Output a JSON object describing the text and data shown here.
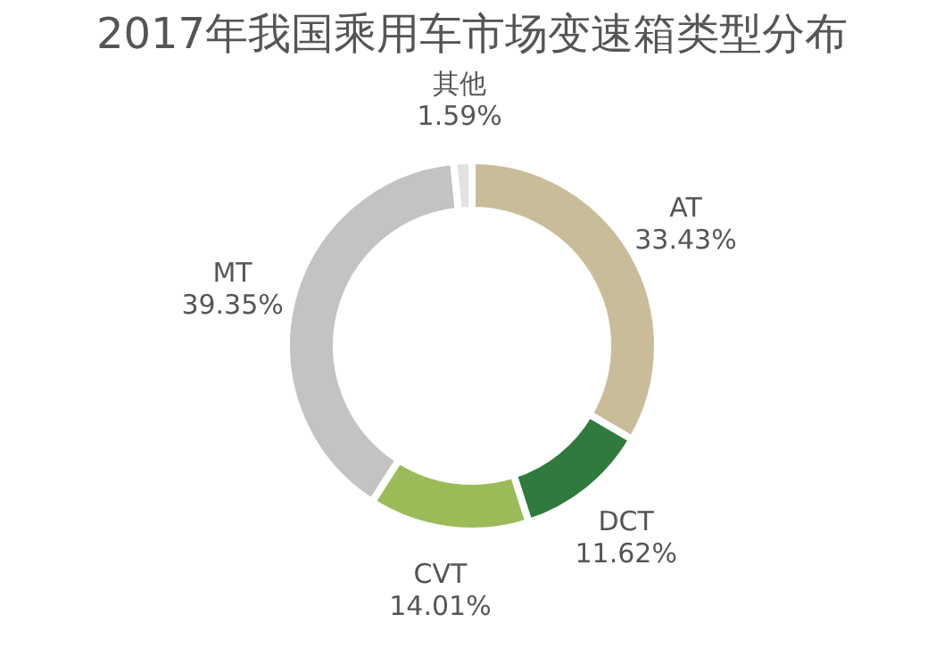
{
  "chart_data": {
    "type": "donut",
    "title": "2017年我国乘用车市场变速箱类型分布",
    "categories": [
      "AT",
      "DCT",
      "CVT",
      "MT",
      "其他"
    ],
    "values": [
      33.43,
      11.62,
      14.01,
      39.35,
      1.59
    ],
    "colors": [
      "#c9bd99",
      "#2f7a3c",
      "#9bbb59",
      "#c3c3c3",
      "#e2e2e2"
    ],
    "value_labels": [
      "33.43%",
      "11.62%",
      "14.01%",
      "39.35%",
      "1.59%"
    ],
    "legend": false
  }
}
